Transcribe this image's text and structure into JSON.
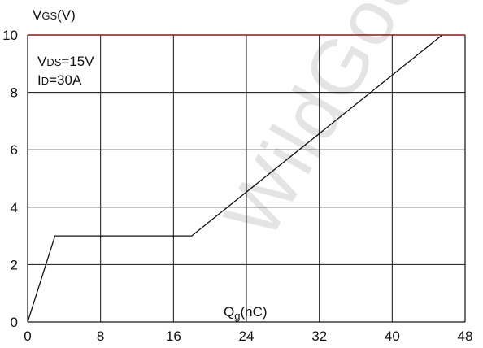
{
  "chart_data": {
    "type": "line",
    "ylabel": {
      "main": "V",
      "sub": "GS",
      "unit": "(V)"
    },
    "xlabel": {
      "main": "Q",
      "sub": "g",
      "unit": "(nC)"
    },
    "xlim": [
      0,
      48
    ],
    "ylim": [
      0,
      10
    ],
    "xticks": [
      0,
      8,
      16,
      24,
      32,
      40,
      48
    ],
    "yticks": [
      0,
      2,
      4,
      6,
      8,
      10
    ],
    "grid": true,
    "conditions": [
      {
        "main": "V",
        "sub": "DS",
        "rest": "=15V"
      },
      {
        "main": "I",
        "sub": "D",
        "rest": "=30A"
      }
    ],
    "series": [
      {
        "x": [
          0,
          3,
          18,
          45.5
        ],
        "y": [
          0,
          3,
          3,
          10
        ]
      }
    ],
    "watermark": "WildGood",
    "colors": {
      "top_border": "#8b1a1a",
      "line": "#111111",
      "grid": "#111111"
    }
  }
}
